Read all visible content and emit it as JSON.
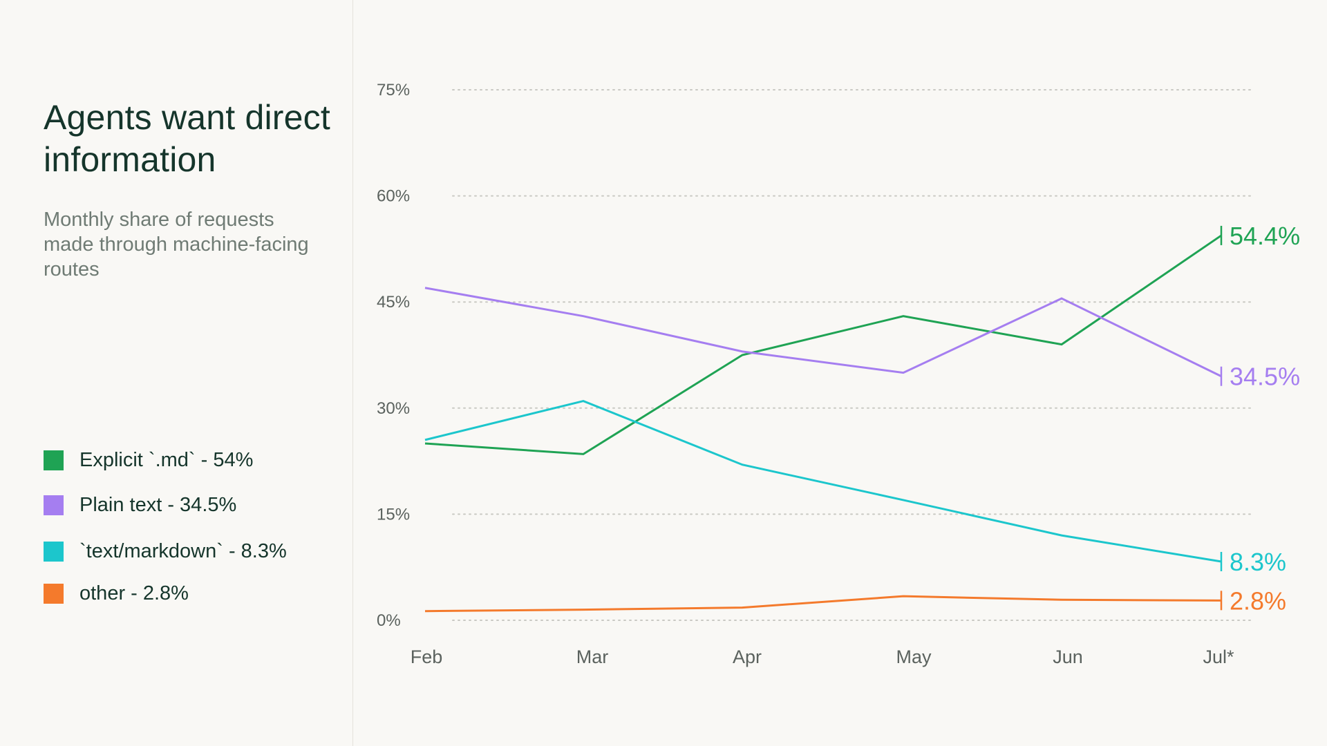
{
  "title": "Agents want direct information",
  "subtitle": "Monthly share of requests made through machine-facing routes",
  "legend": [
    {
      "label": "Explicit `.md` - 54%",
      "color": "#1fa354"
    },
    {
      "label": "Plain text - 34.5%",
      "color": "#a57ef0"
    },
    {
      "label": "`text/markdown` - 8.3%",
      "color": "#1cc6cc"
    },
    {
      "label": "other - 2.8%",
      "color": "#f47a2c"
    }
  ],
  "chart_data": {
    "type": "line",
    "x": [
      "Feb",
      "Mar",
      "Apr",
      "May",
      "Jun",
      "Jul*"
    ],
    "ylim": [
      0,
      75
    ],
    "yticks": [
      "0%",
      "15%",
      "30%",
      "45%",
      "60%",
      "75%"
    ],
    "grid": "horizontal dotted",
    "series": [
      {
        "values": [
          25.0,
          23.5,
          37.5,
          43.0,
          39.0,
          54.4
        ],
        "color": "#1fa354",
        "end_label": "54.4%"
      },
      {
        "values": [
          47.0,
          43.0,
          38.0,
          35.0,
          45.5,
          34.5
        ],
        "color": "#a57ef0",
        "end_label": "34.5%"
      },
      {
        "values": [
          25.5,
          31.0,
          22.0,
          17.0,
          12.0,
          8.3
        ],
        "color": "#1cc6cc",
        "end_label": "8.3%"
      },
      {
        "values": [
          1.3,
          1.5,
          1.8,
          3.4,
          2.9,
          2.8
        ],
        "color": "#f47a2c",
        "end_label": "2.8%"
      }
    ]
  }
}
